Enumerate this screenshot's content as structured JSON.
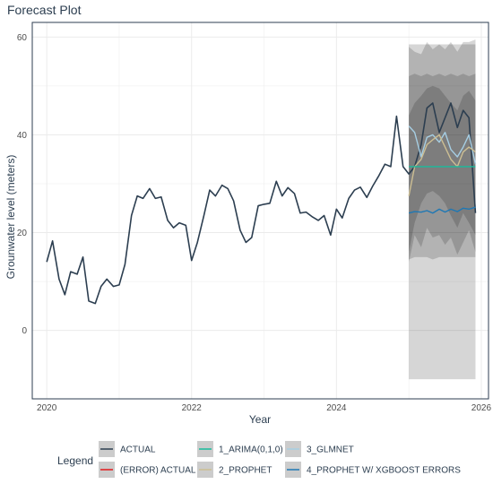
{
  "colors": {
    "actual": "#2c3e50",
    "error_actual": "#e31a1c",
    "arima": "#18bc9c",
    "prophet": "#ccbe93",
    "glmnet": "#a6cee3",
    "prophet_xgb": "#1f78b4",
    "panel_border": "#2c3e50",
    "grid": "#ebebeb"
  },
  "chart_data": {
    "type": "line",
    "title": "Forecast Plot",
    "xlabel": "Year",
    "ylabel": "Grounwater level (meters)",
    "xlim": [
      2019.8,
      2026.1
    ],
    "ylim": [
      -14,
      63
    ],
    "x_ticks": [
      2020,
      2022,
      2024,
      2026
    ],
    "x_tick_labels": [
      "2020",
      "2022",
      "2024",
      "2026"
    ],
    "y_ticks": [
      0,
      20,
      40,
      60
    ],
    "y_tick_labels": [
      "0",
      "20",
      "40",
      "60"
    ],
    "grid": true,
    "legend_position": "bottom",
    "legend_title": "Legend",
    "legend_entries": [
      {
        "key": "actual",
        "label": "ACTUAL"
      },
      {
        "key": "error_actual",
        "label": "(ERROR) ACTUAL"
      },
      {
        "key": "arima",
        "label": "1_ARIMA(0,1,0)"
      },
      {
        "key": "prophet",
        "label": "2_PROPHET"
      },
      {
        "key": "glmnet",
        "label": "3_GLMNET"
      },
      {
        "key": "prophet_xgb",
        "label": "4_PROPHET W/ XGBOOST ERRORS"
      }
    ],
    "series": [
      {
        "key": "actual",
        "name": "ACTUAL",
        "x": [
          2020.0,
          2020.08,
          2020.17,
          2020.25,
          2020.33,
          2020.42,
          2020.5,
          2020.58,
          2020.67,
          2020.75,
          2020.83,
          2020.92,
          2021.0,
          2021.08,
          2021.17,
          2021.25,
          2021.33,
          2021.42,
          2021.5,
          2021.58,
          2021.67,
          2021.75,
          2021.83,
          2021.92,
          2022.0,
          2022.08,
          2022.17,
          2022.25,
          2022.33,
          2022.42,
          2022.5,
          2022.58,
          2022.67,
          2022.75,
          2022.83,
          2022.92,
          2023.0,
          2023.08,
          2023.17,
          2023.25,
          2023.33,
          2023.42,
          2023.5,
          2023.58,
          2023.67,
          2023.75,
          2023.83,
          2023.92,
          2024.0,
          2024.08,
          2024.17,
          2024.25,
          2024.33,
          2024.42,
          2024.5,
          2024.58,
          2024.67,
          2024.75,
          2024.83,
          2024.92,
          2025.0,
          2025.08,
          2025.17,
          2025.25,
          2025.33,
          2025.42,
          2025.5,
          2025.58,
          2025.67,
          2025.75,
          2025.83,
          2025.92
        ],
        "values": [
          14.0,
          18.3,
          10.5,
          7.3,
          12.0,
          11.5,
          15.0,
          6.0,
          5.5,
          9.0,
          10.5,
          9.0,
          9.3,
          13.5,
          23.5,
          27.5,
          27.0,
          29.0,
          27.0,
          27.3,
          22.5,
          21.0,
          22.0,
          21.5,
          14.3,
          18.0,
          23.5,
          28.7,
          27.5,
          29.7,
          29.0,
          26.5,
          20.5,
          18.0,
          19.0,
          25.5,
          25.8,
          26.0,
          30.5,
          27.5,
          29.2,
          28.0,
          24.0,
          24.2,
          23.2,
          22.5,
          23.5,
          19.5,
          24.8,
          23.0,
          27.0,
          28.7,
          29.3,
          27.2,
          29.5,
          31.5,
          34.0,
          33.5,
          43.8,
          33.5,
          32.0,
          33.5,
          38.0,
          45.5,
          46.5,
          40.5,
          43.5,
          46.5,
          41.5,
          45.0,
          43.5,
          24.0
        ]
      },
      {
        "key": "glmnet",
        "name": "3_GLMNET",
        "x": [
          2025.0,
          2025.08,
          2025.17,
          2025.25,
          2025.33,
          2025.42,
          2025.5,
          2025.58,
          2025.67,
          2025.75,
          2025.83,
          2025.92
        ],
        "values": [
          41.8,
          40.5,
          35.5,
          39.5,
          40.0,
          38.5,
          40.5,
          37.0,
          35.5,
          37.5,
          40.0,
          34.0
        ]
      },
      {
        "key": "prophet",
        "name": "2_PROPHET",
        "x": [
          2025.0,
          2025.08,
          2025.17,
          2025.25,
          2025.33,
          2025.42,
          2025.5,
          2025.58,
          2025.67,
          2025.75,
          2025.83,
          2025.92
        ],
        "values": [
          27.5,
          33.5,
          35.0,
          38.0,
          39.0,
          40.0,
          37.5,
          35.0,
          33.5,
          36.5,
          37.5,
          36.5
        ]
      },
      {
        "key": "arima",
        "name": "1_ARIMA(0,1,0)",
        "x": [
          2025.0,
          2025.92
        ],
        "values": [
          33.5,
          33.5
        ]
      },
      {
        "key": "prophet_xgb",
        "name": "4_PROPHET W/ XGBOOST ERRORS",
        "x": [
          2025.0,
          2025.08,
          2025.17,
          2025.25,
          2025.33,
          2025.42,
          2025.5,
          2025.58,
          2025.67,
          2025.75,
          2025.83,
          2025.92
        ],
        "values": [
          24.0,
          24.3,
          24.2,
          24.5,
          24.0,
          24.8,
          24.2,
          24.8,
          24.3,
          25.0,
          24.8,
          25.2
        ]
      }
    ],
    "confidence_bands": [
      {
        "key": "arima",
        "x": [
          2025.0,
          2025.92
        ],
        "lower": [
          -10.0,
          -10.0
        ],
        "upper": [
          58.5,
          58.5
        ]
      },
      {
        "key": "glmnet",
        "x": [
          2025.0,
          2025.08,
          2025.17,
          2025.25,
          2025.33,
          2025.42,
          2025.5,
          2025.58,
          2025.67,
          2025.75,
          2025.83,
          2025.92
        ],
        "lower": [
          14.0,
          19.5,
          17.0,
          21.0,
          19.0,
          19.5,
          17.5,
          19.0,
          15.5,
          18.0,
          20.5,
          16.0
        ],
        "upper": [
          58.0,
          57.0,
          56.5,
          59.0,
          57.5,
          58.5,
          57.5,
          59.0,
          57.0,
          59.0,
          59.0,
          59.5
        ]
      },
      {
        "key": "prophet_xgb",
        "x": [
          2025.0,
          2025.08,
          2025.17,
          2025.25,
          2025.33,
          2025.42,
          2025.5,
          2025.58,
          2025.67,
          2025.75,
          2025.83,
          2025.92
        ],
        "lower": [
          14.5,
          15.0,
          15.0,
          15.0,
          14.5,
          15.0,
          15.0,
          15.0,
          15.0,
          15.0,
          15.0,
          15.0
        ],
        "upper": [
          52.0,
          52.5,
          52.0,
          52.5,
          52.0,
          52.5,
          52.0,
          52.5,
          52.0,
          52.5,
          52.0,
          52.5
        ]
      },
      {
        "key": "prophet",
        "x": [
          2025.0,
          2025.08,
          2025.17,
          2025.25,
          2025.33,
          2025.42,
          2025.5,
          2025.58,
          2025.67,
          2025.75,
          2025.83,
          2025.92
        ],
        "lower": [
          16.0,
          22.0,
          26.0,
          28.0,
          28.5,
          27.5,
          26.0,
          23.5,
          21.0,
          24.0,
          22.0,
          19.5
        ],
        "upper": [
          44.0,
          46.5,
          48.0,
          49.5,
          50.0,
          49.5,
          48.0,
          46.5,
          45.0,
          48.0,
          49.0,
          47.0
        ]
      }
    ]
  }
}
